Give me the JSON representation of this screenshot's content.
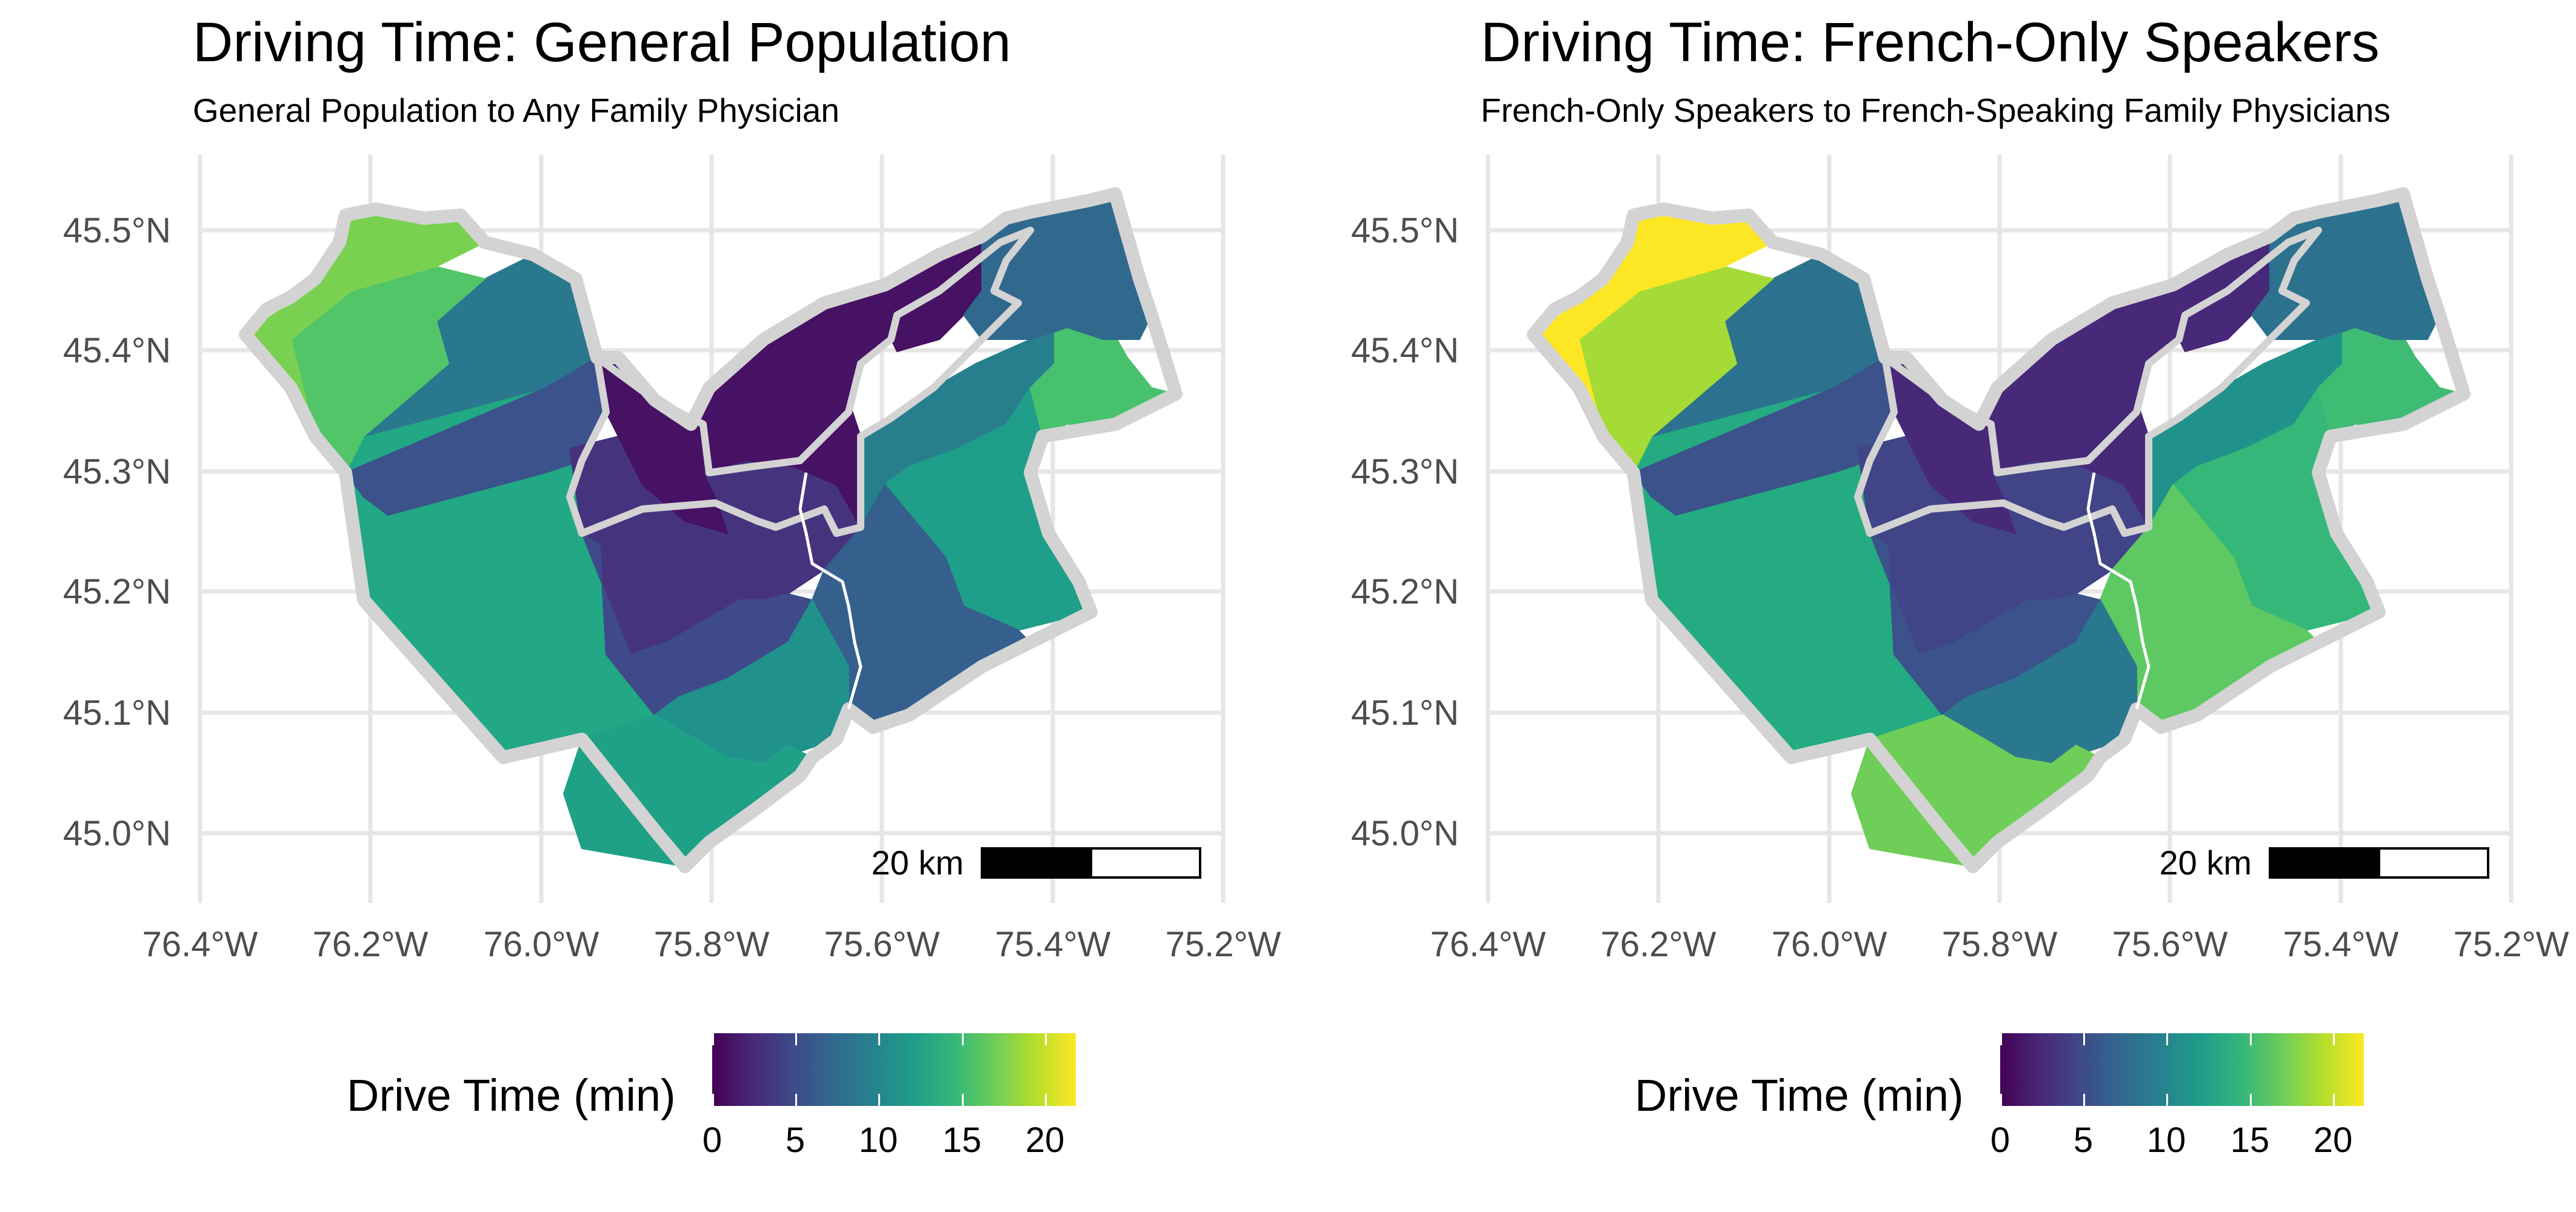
{
  "panels": [
    {
      "title": "Driving Time: General Population",
      "subtitle": "General Population to Any Family Physician",
      "scale_bar": "20 km",
      "legend_title": "Drive Time (min)",
      "colors": {
        "west_tip": "#7ad151",
        "northwest": "#52c569",
        "west": "#2a788e",
        "west_inner": "#3b528b",
        "south_west": "#22a884",
        "south": "#21918c",
        "south_tip": "#1fa187",
        "core": "#46337e",
        "core_center": "#3e4a89",
        "urban": "#471164",
        "east": "#277f8e",
        "east_mid": "#1f9e89",
        "east_far": "#48c16e",
        "northeast": "#31688e",
        "southeast": "#355f8d"
      }
    },
    {
      "title": "Driving Time: French-Only Speakers",
      "subtitle": "French-Only Speakers to French-Speaking Family Physicians",
      "scale_bar": "20 km",
      "legend_title": "Drive Time (min)",
      "colors": {
        "west_tip": "#fde725",
        "northwest": "#a5db36",
        "west": "#2c728e",
        "west_inner": "#3b528b",
        "south_west": "#25ab82",
        "south": "#2a788e",
        "south_tip": "#6ece58",
        "core": "#414487",
        "core_center": "#3b528b",
        "urban": "#482878",
        "east": "#21918c",
        "east_mid": "#35b779",
        "east_far": "#3fbc73",
        "northeast": "#2c728e",
        "southeast": "#5ec962"
      }
    }
  ],
  "axes": {
    "y_ticks": [
      "45.5°N",
      "45.4°N",
      "45.3°N",
      "45.2°N",
      "45.1°N",
      "45.0°N"
    ],
    "x_ticks": [
      "76.4°W",
      "76.2°W",
      "76.0°W",
      "75.8°W",
      "75.6°W",
      "75.4°W",
      "75.2°W"
    ]
  },
  "legend": {
    "labels": [
      "0",
      "5",
      "10",
      "15",
      "20"
    ],
    "min": 0,
    "max": 21.8,
    "palette": "viridis"
  }
}
